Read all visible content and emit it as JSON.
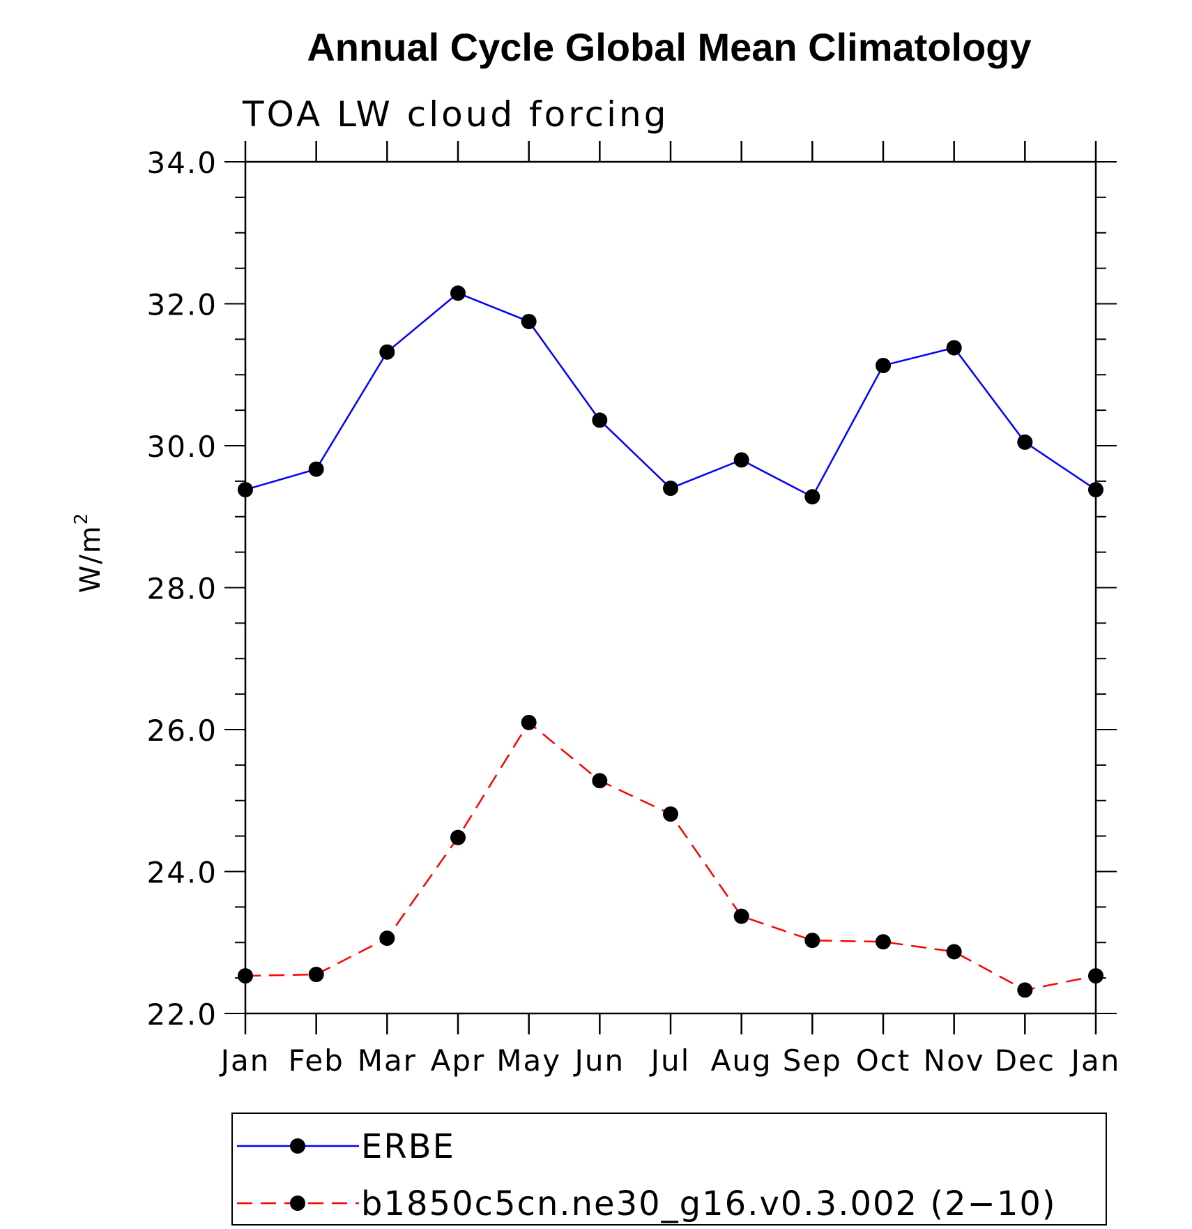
{
  "chart_data": {
    "type": "line",
    "title": "Annual Cycle Global Mean Climatology",
    "subtitle": "TOA LW cloud forcing",
    "xlabel": "",
    "ylabel": "W/m",
    "ylabel_sup": "2",
    "categories": [
      "Jan",
      "Feb",
      "Mar",
      "Apr",
      "May",
      "Jun",
      "Jul",
      "Aug",
      "Sep",
      "Oct",
      "Nov",
      "Dec",
      "Jan"
    ],
    "ylim": [
      22.0,
      34.0
    ],
    "yticks": [
      "22.0",
      "24.0",
      "26.0",
      "28.0",
      "30.0",
      "32.0",
      "34.0"
    ],
    "grid": false,
    "legend_position": "bottom",
    "series": [
      {
        "name": "ERBE",
        "color": "#0000ff",
        "line_style": "solid",
        "marker": "filled-circle",
        "values": [
          29.38,
          29.67,
          31.32,
          32.15,
          31.75,
          30.36,
          29.4,
          29.8,
          29.28,
          31.13,
          31.38,
          30.05,
          29.38
        ]
      },
      {
        "name": "b1850c5cn.ne30_g16.v0.3.002 (2−10)",
        "color": "#ff0000",
        "line_style": "dashed",
        "marker": "filled-circle",
        "values": [
          22.53,
          22.55,
          23.06,
          24.48,
          26.1,
          25.28,
          24.81,
          23.37,
          23.03,
          23.01,
          22.87,
          22.33,
          22.53
        ]
      }
    ]
  }
}
